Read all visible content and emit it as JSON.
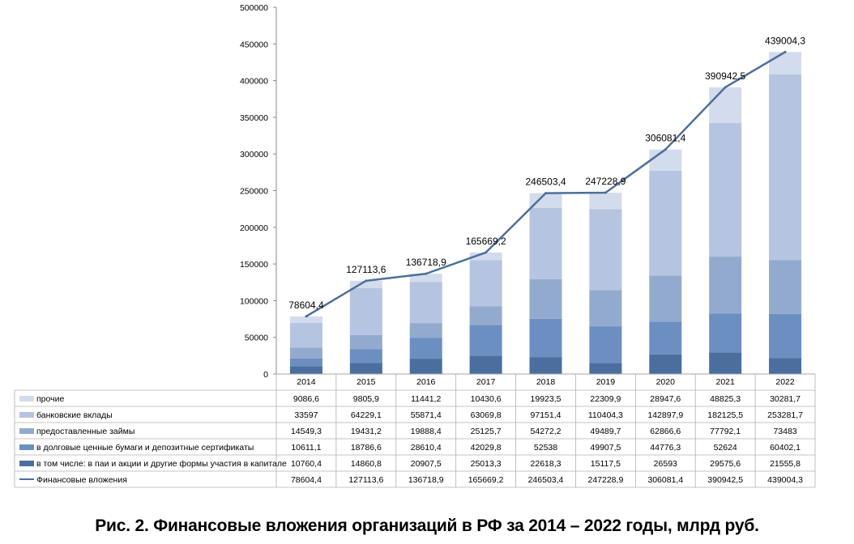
{
  "chart_data": {
    "type": "bar",
    "title": "",
    "categories": [
      "2014",
      "2015",
      "2016",
      "2017",
      "2018",
      "2019",
      "2020",
      "2021",
      "2022"
    ],
    "ylim": [
      0,
      500000
    ],
    "yticks": [
      "0",
      "50000",
      "100000",
      "150000",
      "200000",
      "250000",
      "300000",
      "350000",
      "400000",
      "450000",
      "500000"
    ],
    "series": [
      {
        "name": "в том числе: в паи и акции и другие формы участия в капитале",
        "color": "#4a6f9f",
        "values": [
          10760.4,
          14860.8,
          20907.5,
          25013.3,
          22618.3,
          15117.5,
          26593,
          29575.6,
          21555.8
        ],
        "labels": [
          "10760,4",
          "14860,8",
          "20907,5",
          "25013,3",
          "22618,3",
          "15117,5",
          "26593",
          "29575,6",
          "21555,8"
        ]
      },
      {
        "name": "в долговые ценные бумаги и депозитные сертификаты",
        "color": "#6b8fc0",
        "values": [
          10611.1,
          18786.6,
          28610.4,
          42029.8,
          52538,
          49907.5,
          44776.3,
          52624,
          60402.1
        ],
        "labels": [
          "10611,1",
          "18786,6",
          "28610,4",
          "42029,8",
          "52538",
          "49907,5",
          "44776,3",
          "52624",
          "60402,1"
        ]
      },
      {
        "name": "предоставленные займы",
        "color": "#93aacf",
        "values": [
          14549.3,
          19431.2,
          19888.4,
          25125.7,
          54272.2,
          49489.7,
          62866.6,
          77792.1,
          73483
        ],
        "labels": [
          "14549,3",
          "19431,2",
          "19888,4",
          "25125,7",
          "54272,2",
          "49489,7",
          "62866,6",
          "77792,1",
          "73483"
        ]
      },
      {
        "name": "банковские вклады",
        "color": "#b5c4e0",
        "values": [
          33597,
          64229.1,
          55871.4,
          63069.8,
          97151.4,
          110404.3,
          142897.9,
          182125.5,
          253281.7
        ],
        "labels": [
          "33597",
          "64229,1",
          "55871,4",
          "63069,8",
          "97151,4",
          "110404,3",
          "142897,9",
          "182125,5",
          "253281,7"
        ]
      },
      {
        "name": "прочие",
        "color": "#d3dcec",
        "values": [
          9086.6,
          9805.9,
          11441.2,
          10430.6,
          19923.5,
          22309.9,
          28947.6,
          48825.3,
          30281.7
        ],
        "labels": [
          "9086,6",
          "9805,9",
          "11441,2",
          "10430,6",
          "19923,5",
          "22309,9",
          "28947,6",
          "48825,3",
          "30281,7"
        ]
      }
    ],
    "line": {
      "name": "Финансовые вложения",
      "color": "#4d6f9a",
      "values": [
        78604.4,
        127113.6,
        136718.9,
        165669.2,
        246503.4,
        247228.9,
        306081.4,
        390942.5,
        439004.3
      ],
      "labels": [
        "78604,4",
        "127113,6",
        "136718,9",
        "165669,2",
        "246503,4",
        "247228,9",
        "306081,4",
        "390942,5",
        "439004,3"
      ]
    },
    "table_row_order": [
      "прочие",
      "банковские вклады",
      "предоставленные займы",
      "в долговые ценные бумаги и депозитные сертификаты",
      "в том числе: в паи и акции и другие формы участия в капитале",
      "Финансовые вложения"
    ]
  },
  "caption": "Рис. 2. Финансовые вложения организаций в РФ за 2014 – 2022 годы, млрд руб."
}
